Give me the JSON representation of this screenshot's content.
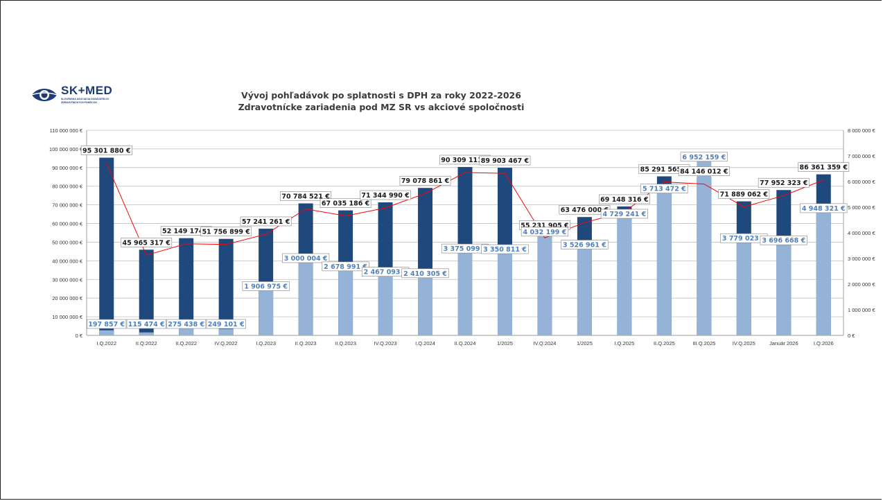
{
  "logo": {
    "brand": "SK+MED",
    "sub1": "SLOVENSKÁ ASOCIÁCIA DODÁVATEĽOV",
    "sub2": "ZDRAVOTNÍCKYCH POMÔCOK"
  },
  "chart_data": {
    "type": "bar",
    "title_line1": "Vývoj pohľadávok po splatnosti s DPH za roky 2022-2026",
    "title_line2": "Zdravotnícke zariadenia pod MZ SR vs akciové spoločnosti",
    "categories": [
      "I.Q.2022",
      "II.Q.2022",
      "II.Q.2022",
      "IV.Q.2022",
      "I.Q.2023",
      "II.Q.2023",
      "II.Q.2023",
      "IV.Q.2023",
      "I.Q.2024",
      "II.Q.2024",
      "1/2025",
      "IV.Q.2024",
      "1/2025",
      "I.Q.2025",
      "II.Q.2025",
      "III.Q.2025",
      "IV.Q.2025",
      "Január 2026",
      "I.Q.2026"
    ],
    "left_axis": {
      "ylim": [
        0,
        110000000
      ],
      "ticks": [
        "0 €",
        "10 000 000 €",
        "20 000 000 €",
        "30 000 000 €",
        "40 000 000 €",
        "50 000 000 €",
        "60 000 000 €",
        "70 000 000 €",
        "80 000 000 €",
        "90 000 000 €",
        "100 000 000 €",
        "110 000 000 €"
      ]
    },
    "right_axis": {
      "ylim": [
        0,
        8000000
      ],
      "ticks": [
        "0 €",
        "1 000 000 €",
        "2 000 000 €",
        "3 000 000 €",
        "4 000 000 €",
        "5 000 000 €",
        "6 000 000 €",
        "7 000 000 €",
        "8 000 000 €"
      ]
    },
    "colors": {
      "mz": "#1f497d",
      "as": "#95b3d7",
      "line": "#ff0000",
      "grid": "#bfbfbf",
      "label_mz": "#1a1a1a",
      "label_as": "#4f81bd"
    },
    "series": [
      {
        "axis": "left",
        "values": [
          95301880,
          45965317,
          52149174,
          51756899,
          57241261,
          70784521,
          67035186,
          71344990,
          79078861,
          90309111,
          89903467,
          55231905,
          63476000,
          69148316,
          85291565,
          84146012,
          71889062,
          77952323,
          86361359
        ],
        "labels": [
          "95 301 880 €",
          "45 965 317 €",
          "52 149 174 €",
          "51 756 899 €",
          "57 241 261 €",
          "70 784 521 €",
          "67 035 186 €",
          "71 344 990 €",
          "79 078 861 €",
          "90 309 111 €",
          "89 903 467 €",
          "55 231 905 €",
          "63 476 000 €",
          "69 148 316 €",
          "85 291 565 €",
          "84 146 012 €",
          "71 889 062 €",
          "77 952 323 €",
          "86 361 359 €"
        ]
      },
      {
        "axis": "right",
        "values": [
          197857,
          115474,
          275438,
          249101,
          1906975,
          3000004,
          2678991,
          2467093,
          2410305,
          3375099,
          3350811,
          4032199,
          3526961,
          4729241,
          5713472,
          6952159,
          3779023,
          3696668,
          4948321
        ],
        "labels": [
          "197 857 €",
          "115 474 €",
          "275 438 €",
          "249 101 €",
          "1 906 975 €",
          "3 000 004 €",
          "2 678 991 €",
          "2 467 093 €",
          "2 410 305 €",
          "3 375 099 €",
          "3 350 811 €",
          "4 032 199 €",
          "3 526 961 €",
          "4 729 241 €",
          "5 713 472 €",
          "6 952 159 €",
          "3 779 023 €",
          "3 696 668 €",
          "4 948 321 €"
        ]
      }
    ],
    "grid": true,
    "legend": "none"
  }
}
